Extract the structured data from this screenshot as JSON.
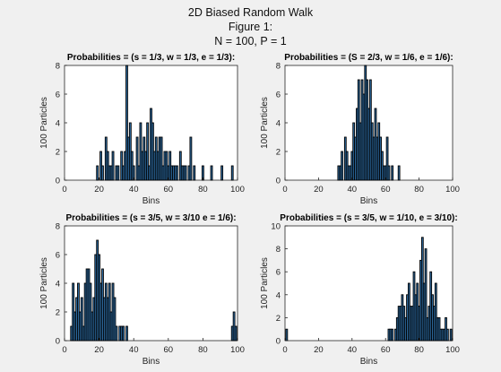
{
  "figure": {
    "title_lines": [
      "2D Biased Random Walk",
      "Figure 1:",
      "N = 100, P = 1"
    ],
    "bar_color": "#2e6fa8",
    "edge_color": "#000000",
    "background": "#f0f0f0"
  },
  "chart_data": [
    {
      "type": "bar",
      "title": "Probabilities = (s = 1/3, w = 1/3, e = 1/3):",
      "xlabel": "Bins",
      "ylabel": "100 Particles",
      "xlim": [
        0,
        100
      ],
      "ylim": [
        0,
        8
      ],
      "xticks": [
        0,
        20,
        40,
        60,
        80,
        100
      ],
      "yticks": [
        0,
        2,
        4,
        6,
        8
      ],
      "x": [
        19,
        21,
        22,
        24,
        25,
        26,
        27,
        28,
        30,
        31,
        33,
        34,
        35,
        36,
        37,
        38,
        39,
        40,
        42,
        43,
        44,
        45,
        46,
        47,
        48,
        49,
        50,
        51,
        52,
        53,
        54,
        55,
        56,
        57,
        58,
        59,
        60,
        61,
        62,
        63,
        64,
        65,
        67,
        68,
        69,
        70,
        72,
        73,
        75,
        80,
        85,
        91,
        97
      ],
      "values": [
        1,
        2,
        1,
        3,
        2,
        1,
        1,
        2,
        1,
        1,
        2,
        1,
        2,
        8,
        3,
        4,
        2,
        1,
        3,
        1,
        4,
        2,
        3,
        2,
        4,
        1,
        5,
        4,
        2,
        3,
        2,
        3,
        3,
        1,
        2,
        2,
        1,
        2,
        1,
        1,
        1,
        1,
        2,
        1,
        1,
        1,
        1,
        3,
        1,
        1,
        1,
        1,
        1
      ]
    },
    {
      "type": "bar",
      "title": "Probabilities = (S = 2/3, w = 1/6, e = 1/6):",
      "xlabel": "Bins",
      "ylabel": "100 Particles",
      "xlim": [
        0,
        100
      ],
      "ylim": [
        0,
        8
      ],
      "xticks": [
        0,
        20,
        40,
        60,
        80,
        100
      ],
      "yticks": [
        0,
        2,
        4,
        6,
        8
      ],
      "x": [
        32,
        33,
        34,
        36,
        37,
        38,
        39,
        40,
        41,
        42,
        43,
        44,
        45,
        46,
        47,
        48,
        49,
        50,
        51,
        52,
        53,
        54,
        55,
        56,
        57,
        58,
        59,
        60,
        61,
        62,
        64,
        68
      ],
      "values": [
        1,
        1,
        2,
        3,
        2,
        1,
        1,
        2,
        4,
        3,
        5,
        7,
        4,
        7,
        6,
        8,
        7,
        5,
        7,
        4,
        3,
        5,
        3,
        4,
        3,
        2,
        1,
        1,
        3,
        1,
        1,
        1
      ]
    },
    {
      "type": "bar",
      "title": "Probabilities = (s = 3/5, w = 3/10 e = 1/6):",
      "xlabel": "Bins",
      "ylabel": "100 Particles",
      "xlim": [
        0,
        100
      ],
      "ylim": [
        0,
        8
      ],
      "xticks": [
        0,
        20,
        40,
        60,
        80,
        100
      ],
      "yticks": [
        0,
        2,
        4,
        6,
        8
      ],
      "x": [
        4,
        5,
        6,
        7,
        8,
        9,
        10,
        11,
        12,
        13,
        14,
        15,
        16,
        17,
        18,
        19,
        20,
        21,
        22,
        23,
        24,
        25,
        26,
        27,
        28,
        29,
        30,
        32,
        33,
        34,
        36,
        97,
        98,
        99
      ],
      "values": [
        1,
        4,
        2,
        3,
        4,
        2,
        3,
        1,
        4,
        5,
        5,
        4,
        2,
        3,
        6,
        7,
        6,
        4,
        5,
        3,
        4,
        3,
        4,
        2,
        4,
        3,
        1,
        1,
        1,
        1,
        1,
        1,
        2,
        1
      ]
    },
    {
      "type": "bar",
      "title": "Probabilities = (s = 3/5, w = 1/10, e = 3/10):",
      "xlabel": "Bins",
      "ylabel": "100 Particles",
      "xlim": [
        0,
        100
      ],
      "ylim": [
        0,
        10
      ],
      "xticks": [
        0,
        20,
        40,
        60,
        80,
        100
      ],
      "yticks": [
        0,
        2,
        4,
        6,
        8,
        10
      ],
      "x": [
        1,
        62,
        63,
        64,
        66,
        67,
        68,
        69,
        70,
        71,
        72,
        73,
        74,
        75,
        76,
        77,
        78,
        79,
        80,
        81,
        82,
        83,
        84,
        85,
        86,
        87,
        88,
        89,
        90,
        91,
        92,
        93,
        94,
        95,
        96,
        97,
        99
      ],
      "values": [
        1,
        1,
        1,
        1,
        1,
        2,
        3,
        3,
        4,
        3,
        2,
        4,
        5,
        3,
        3,
        6,
        4,
        5,
        3,
        7,
        9,
        5,
        8,
        2,
        3,
        6,
        4,
        3,
        5,
        2,
        2,
        1,
        1,
        1,
        2,
        1,
        1
      ]
    }
  ]
}
